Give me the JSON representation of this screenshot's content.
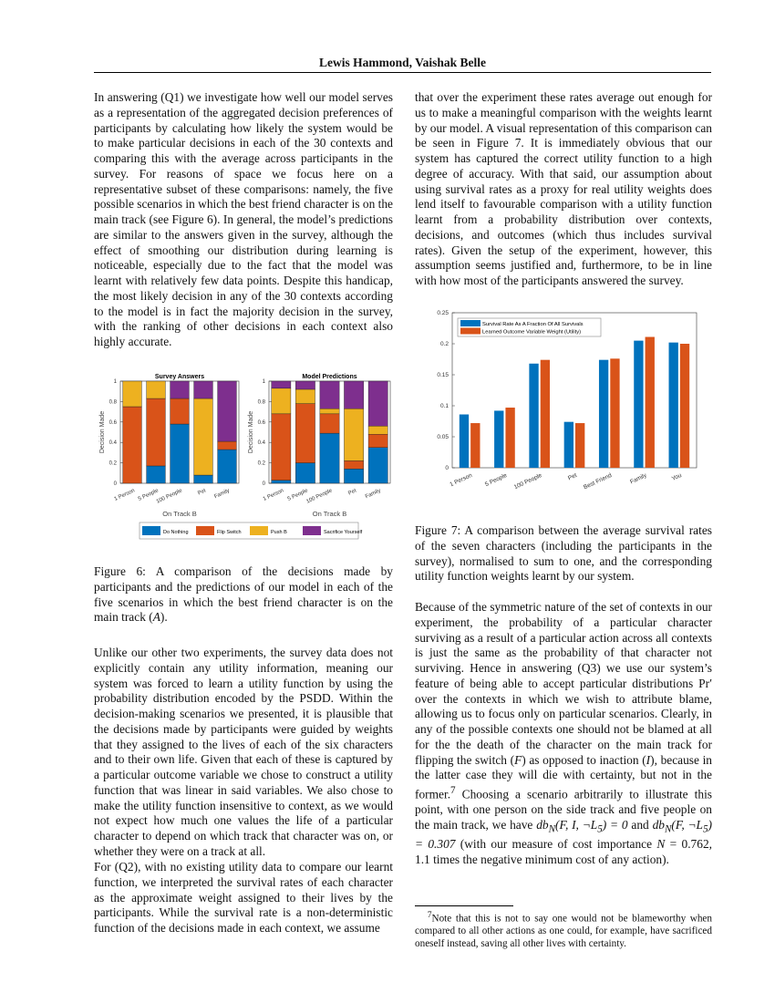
{
  "header": "Lewis Hammond,  Vaishak Belle",
  "left": {
    "p1": "In answering (Q1) we investigate how well our model serves as a representation of the aggregated decision preferences of participants by calculating how likely the system would be to make particular decisions in each of the 30 contexts and comparing this with the average across participants in the survey. For reasons of space we focus here on a representative subset of these comparisons: namely, the five possible scenarios in which the best friend character is on the main track (see Figure 6). In general, the model’s predictions are similar to the answers given in the survey, although the effect of smoothing our distribution during learning is noticeable, especially due to the fact that the model was learnt with relatively few data points. Despite this handicap, the most likely decision in any of the 30 contexts according to the model is in fact the majority decision in the survey, with the ranking of other decisions in each context also highly accurate.",
    "fig6_caption_a": "Figure 6: A comparison of the decisions made by participants and the predictions of our model in each of the five scenarios in which the best friend character is on the main track (",
    "fig6_caption_math": "A",
    "fig6_caption_b": ").",
    "p2": "Unlike our other two experiments, the survey data does not explicitly contain any utility information, meaning our system was forced to learn a utility function by using the probability distribution encoded by the PSDD. Within the decision-making scenarios we presented, it is plausible that the decisions made by participants were guided by weights that they assigned to the lives of each of the six characters and to their own life. Given that each of these is captured by a particular outcome variable we chose to construct a utility function that was linear in said variables. We also chose to make the utility function insensitive to context, as we would not expect how much one values the life of a particular character to depend on which track that character was on, or whether they were on a track at all.",
    "p3": "For (Q2), with no existing utility data to compare our learnt function, we interpreted the survival rates of each character as the approximate weight assigned to their lives by the participants. While the survival rate is a non-deterministic function of the decisions made in each context, we assume"
  },
  "right": {
    "p1": "that over the experiment these rates average out enough for us to make a meaningful comparison with the weights learnt by our model. A visual representation of this comparison can be seen in Figure 7. It is immediately obvious that our system has captured the correct utility function to a high degree of accuracy. With that said, our assumption about using survival rates as a proxy for real utility weights does lend itself to favourable comparison with a utility function learnt from a probability distribution over contexts, decisions, and outcomes (which thus includes survival rates). Given the setup of the experiment, however, this assumption seems justified and, furthermore, to be in line with how most of the participants answered the survey.",
    "fig7_caption": "Figure 7: A comparison between the average survival rates of the seven characters (including the participants in the survey), normalised to sum to one, and the corresponding utility function weights learnt by our system.",
    "p2_a": "Because of the symmetric nature of the set of contexts in our experiment, the probability of a particular character surviving as a result of a particular action across all contexts is just the same as the probability of that character not surviving. Hence in answering (Q3) we use our system’s feature of being able to accept particular distributions Pr′ over the contexts in which we wish to attribute blame, allowing us to focus only on particular scenarios. Clearly, in any of the possible contexts one should not be blamed at all for the the death of the character on the main track for flipping the switch (",
    "p2_F": "F",
    "p2_b": ") as opposed to inaction (",
    "p2_I": "I",
    "p2_c": "), because in the latter case they will die with certainty, but not in the former.",
    "p2_fnmark": "7",
    "p2_d": " Choosing a scenario arbitrarily to illustrate this point, with one person on the side track and five people on the main track, we have ",
    "p2_m1": "db",
    "p2_m1sub": "N",
    "p2_m1args": "(F, I, ¬L",
    "p2_m1sub2": "5",
    "p2_m1end": ") = 0",
    "p2_e": " and ",
    "p2_m2": "db",
    "p2_m2sub": "N",
    "p2_m2args": "(F, ¬L",
    "p2_m2sub2": "5",
    "p2_m2end": ") = 0.307",
    "p2_f": " (with our measure of cost importance ",
    "p2_N": "N",
    "p2_g": " = 0.762, 1.1 times the negative minimum cost of any action).",
    "footnote_mark": "7",
    "footnote": "Note that this is not to say one would not be blameworthy when compared to all other actions as one could, for example, have sacrificed oneself instead, saving all other lives with certainty."
  },
  "chart_data": [
    {
      "type": "bar",
      "stacked": true,
      "title": "Survey Answers",
      "xlabel": "On Track B",
      "ylabel": "Decision Made",
      "ylim": [
        0,
        1
      ],
      "yticks": [
        "0",
        "0.2",
        "0.4",
        "0.6",
        "0.8",
        "1"
      ],
      "categories": [
        "1 Person",
        "5 People",
        "100 People",
        "Pet",
        "Family"
      ],
      "series": [
        {
          "name": "Do Nothing",
          "color": "#0072BD",
          "values": [
            0,
            0.17,
            0.58,
            0.08,
            0.33
          ]
        },
        {
          "name": "Flip Switch",
          "color": "#D95319",
          "values": [
            0.75,
            0.66,
            0.25,
            0,
            0.08
          ]
        },
        {
          "name": "Push B",
          "color": "#EDB120",
          "values": [
            0.25,
            0.17,
            0,
            0.75,
            0
          ]
        },
        {
          "name": "Sacrifice Yourself",
          "color": "#7E2F8E",
          "values": [
            0,
            0,
            0.17,
            0.17,
            0.59
          ]
        }
      ],
      "legend": "bottom"
    },
    {
      "type": "bar",
      "stacked": true,
      "title": "Model Predictions",
      "xlabel": "On Track B",
      "ylabel": "Decision Made",
      "ylim": [
        0,
        1
      ],
      "yticks": [
        "0",
        "0.2",
        "0.4",
        "0.6",
        "0.8",
        "1"
      ],
      "categories": [
        "1 Person",
        "5 People",
        "100 People",
        "Pet",
        "Family"
      ],
      "series": [
        {
          "name": "Do Nothing",
          "color": "#0072BD",
          "values": [
            0.03,
            0.2,
            0.49,
            0.14,
            0.35
          ]
        },
        {
          "name": "Flip Switch",
          "color": "#D95319",
          "values": [
            0.65,
            0.58,
            0.19,
            0.08,
            0.13
          ]
        },
        {
          "name": "Push B",
          "color": "#EDB120",
          "values": [
            0.25,
            0.14,
            0.05,
            0.51,
            0.08
          ]
        },
        {
          "name": "Sacrifice Yourself",
          "color": "#7E2F8E",
          "values": [
            0.07,
            0.08,
            0.27,
            0.27,
            0.44
          ]
        }
      ],
      "legend": "bottom"
    },
    {
      "type": "bar",
      "stacked": false,
      "ylim": [
        0,
        0.25
      ],
      "yticks": [
        "0",
        "0.05",
        "0.1",
        "0.15",
        "0.2",
        "0.25"
      ],
      "categories": [
        "1 Person",
        "5 People",
        "100 People",
        "Pet",
        "Best Friend",
        "Family",
        "You"
      ],
      "series": [
        {
          "name": "Survival Rate As A Fraction Of All Survivals",
          "color": "#0072BD",
          "values": [
            0.086,
            0.092,
            0.168,
            0.074,
            0.174,
            0.205,
            0.202
          ]
        },
        {
          "name": "Learned Outcome Variable Weight (Utility)",
          "color": "#D95319",
          "values": [
            0.072,
            0.097,
            0.174,
            0.072,
            0.176,
            0.211,
            0.2
          ]
        }
      ],
      "legend": "top-left"
    }
  ]
}
